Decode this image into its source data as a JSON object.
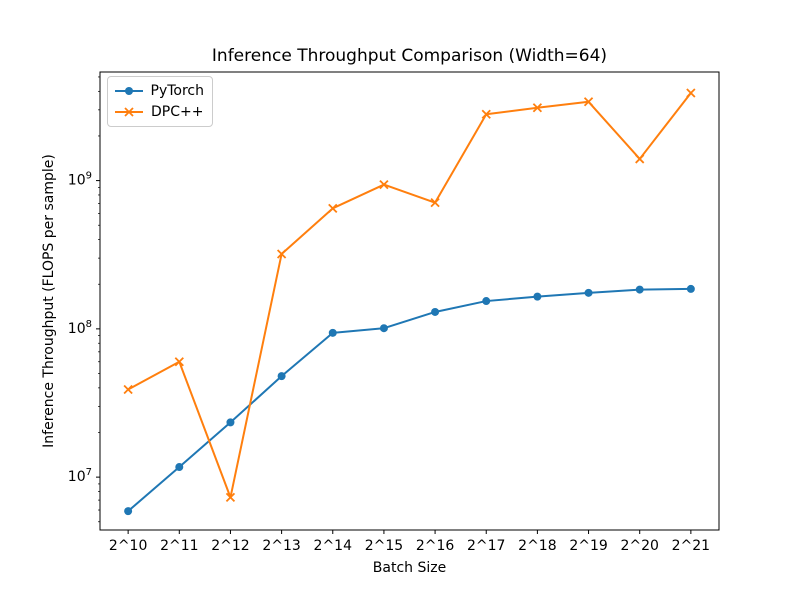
{
  "chart_data": {
    "type": "line",
    "title": "Inference Throughput Comparison (Width=64)",
    "xlabel": "Batch Size",
    "ylabel": "Inference Throughput (FLOPS per sample)",
    "categories": [
      "2^10",
      "2^11",
      "2^12",
      "2^13",
      "2^14",
      "2^15",
      "2^16",
      "2^17",
      "2^18",
      "2^19",
      "2^20",
      "2^21"
    ],
    "yscale": "log",
    "ylim": [
      4400000,
      5400000000
    ],
    "yticks": [
      10000000,
      100000000,
      1000000000
    ],
    "grid": false,
    "legend_position": "upper left",
    "series": [
      {
        "name": "PyTorch",
        "color": "#1f77b4",
        "marker": "circle",
        "values": [
          5900000,
          11700000,
          23400000,
          48000000,
          94000000,
          101000000,
          130000000,
          154000000,
          165000000,
          175000000,
          184000000,
          186000000
        ]
      },
      {
        "name": "DPC++",
        "color": "#ff7f0e",
        "marker": "x",
        "values": [
          39000000,
          60000000,
          7300000,
          320000000,
          650000000,
          940000000,
          710000000,
          2800000000,
          3100000000,
          3400000000,
          1400000000,
          3900000000
        ]
      }
    ]
  }
}
